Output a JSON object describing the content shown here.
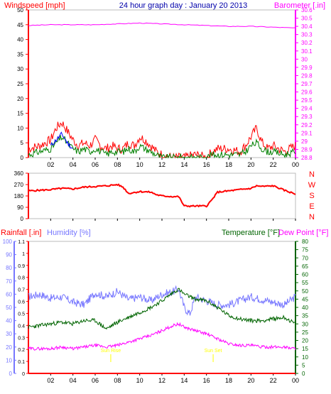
{
  "header": {
    "left_label": "Windspeed [mph]",
    "title": "24 hour graph day : January 20 2013",
    "right_label": "Barometer [.in]"
  },
  "lower_header": {
    "rainfall_label": "Rainfall [.in]",
    "humidity_label": "Humidity [%]",
    "temperature_label": "Temperature [°F]",
    "dewpoint_label": "Dew Point [°F]"
  },
  "colors": {
    "wind": "#ff0000",
    "gust": "#ff0000",
    "avg": "#008000",
    "avg2": "#0000ff",
    "baro": "#ff00ff",
    "direction": "#ff0000",
    "humidity": "#7777ff",
    "temperature": "#006400",
    "dewpoint": "#ff00ff",
    "rain": "#ff0000",
    "sun": "#ffff00",
    "title": "#0000aa"
  },
  "x_ticks": [
    "02",
    "04",
    "06",
    "08",
    "10",
    "12",
    "14",
    "16",
    "18",
    "20",
    "22",
    "00"
  ],
  "chart_data": [
    {
      "type": "line",
      "name": "wind-barometer",
      "title": "24 hour graph day : January 20 2013",
      "ylabel": "Windspeed [mph]",
      "ylabel_right": "Barometer [.in]",
      "ylim": [
        0,
        50
      ],
      "yticks": [
        0,
        5,
        10,
        15,
        20,
        25,
        30,
        35,
        40,
        45,
        50
      ],
      "ylim_right": [
        28.8,
        30.6
      ],
      "yticks_right": [
        "28.8",
        "28.9",
        "29",
        "29.1",
        "29.2",
        "29.3",
        "29.4",
        "29.5",
        "29.6",
        "29.7",
        "29.8",
        "29.9",
        "30",
        "30.1",
        "30.2",
        "30.3",
        "30.4",
        "30.5",
        "30.6"
      ],
      "xlim": [
        0,
        24
      ],
      "series": [
        {
          "key": "gust",
          "x": [
            0,
            1,
            2,
            2.5,
            3,
            3.5,
            4,
            4.5,
            5,
            5.5,
            6,
            6.5,
            7,
            7.5,
            8,
            8.5,
            9,
            9.5,
            10,
            10.5,
            11,
            11.5,
            12,
            13,
            14,
            15,
            16,
            16.5,
            17,
            18,
            19,
            19.5,
            20,
            20.5,
            21,
            21.5,
            22,
            23,
            24
          ],
          "y": [
            3,
            4,
            6,
            10,
            12,
            9,
            6,
            4,
            5,
            4,
            6,
            4,
            3,
            4,
            3,
            3,
            5,
            4,
            7,
            6,
            4,
            2,
            1,
            0,
            0,
            1,
            0,
            2,
            3,
            3,
            2,
            4,
            7,
            10,
            5,
            3,
            4,
            2,
            4
          ]
        },
        {
          "key": "avg",
          "x": [
            0,
            1,
            2,
            2.5,
            3,
            3.5,
            4,
            4.5,
            5,
            5.5,
            6,
            6.5,
            7,
            7.5,
            8,
            8.5,
            9,
            9.5,
            10,
            10.5,
            11,
            11.5,
            12,
            13,
            14,
            15,
            16,
            16.5,
            17,
            18,
            19,
            19.5,
            20,
            20.5,
            21,
            21.5,
            22,
            23,
            24
          ],
          "y": [
            1,
            2,
            3,
            5,
            7,
            5,
            3,
            2,
            3,
            2,
            3,
            2,
            1,
            2,
            2,
            2,
            3,
            2,
            4,
            3,
            2,
            1,
            0,
            0,
            0,
            0,
            0,
            1,
            1,
            1,
            1,
            2,
            4,
            5,
            3,
            2,
            2,
            1,
            2
          ]
        },
        {
          "key": "avg2",
          "x": [
            2,
            2.5,
            3,
            3.5,
            4
          ],
          "y": [
            4,
            6,
            8,
            5,
            3
          ]
        },
        {
          "key": "baro",
          "x": [
            0,
            2,
            4,
            6,
            8,
            10,
            12,
            14,
            16,
            18,
            20,
            22,
            24
          ],
          "y": [
            30.41,
            30.42,
            30.42,
            30.42,
            30.43,
            30.44,
            30.43,
            30.42,
            30.41,
            30.4,
            30.4,
            30.39,
            30.38
          ]
        }
      ]
    },
    {
      "type": "line",
      "name": "wind-direction",
      "yticks": [
        0,
        90,
        180,
        270,
        360
      ],
      "ylim": [
        0,
        360
      ],
      "compass_labels": [
        "N",
        "W",
        "S",
        "E",
        "N"
      ],
      "xlim": [
        0,
        24
      ],
      "x": [
        0,
        1,
        2,
        3,
        4,
        5,
        6,
        7,
        8,
        8.5,
        9,
        10,
        11,
        11.5,
        12,
        13,
        13.5,
        14,
        15,
        16,
        16.5,
        17,
        18,
        19,
        20,
        20.5,
        21,
        22,
        23,
        24
      ],
      "y": [
        220,
        225,
        230,
        240,
        235,
        250,
        255,
        260,
        270,
        250,
        200,
        215,
        210,
        190,
        180,
        175,
        175,
        100,
        100,
        100,
        150,
        210,
        220,
        230,
        240,
        260,
        255,
        260,
        225,
        195
      ]
    },
    {
      "type": "line",
      "name": "humidity-temperature",
      "ylabel_left": "Rainfall [.in]",
      "ylabel_left2": "Humidity [%]",
      "ylabel_right": "Temperature [°F]",
      "ylabel_right2": "Dew Point [°F]",
      "rain_ticks": [
        "0",
        "0.1",
        "0.2",
        "0.3",
        "0.4",
        "0.5",
        "0.6",
        "0.7",
        "0.8",
        "0.9",
        "1",
        "1.1"
      ],
      "rain_lim": [
        0,
        1.1
      ],
      "humidity_ticks": [
        0,
        10,
        20,
        30,
        40,
        50,
        60,
        70,
        80,
        90,
        100
      ],
      "humidity_lim": [
        0,
        100
      ],
      "temp_ticks": [
        0,
        5,
        10,
        15,
        20,
        25,
        30,
        35,
        40,
        45,
        50,
        55,
        60,
        65,
        70,
        75,
        80
      ],
      "temp_lim": [
        0,
        80
      ],
      "xlim": [
        0,
        24
      ],
      "sun_markers": [
        {
          "x": 7.4,
          "label": "Sun Rise"
        },
        {
          "x": 16.6,
          "label": "Sun Set"
        }
      ],
      "series": [
        {
          "key": "humidity",
          "x": [
            0,
            1,
            2,
            3,
            4,
            5,
            6,
            7,
            8,
            9,
            10,
            11,
            12,
            13,
            13.5,
            14,
            14.5,
            15,
            16,
            17,
            18,
            19,
            20,
            21,
            22,
            23,
            24
          ],
          "y": [
            58,
            60,
            57,
            58,
            54,
            52,
            61,
            58,
            62,
            56,
            58,
            55,
            60,
            62,
            64,
            50,
            45,
            58,
            55,
            52,
            52,
            55,
            58,
            56,
            54,
            52,
            58
          ]
        },
        {
          "key": "temperature",
          "x": [
            0,
            1,
            2,
            3,
            4,
            5,
            6,
            7,
            8,
            9,
            10,
            11,
            12,
            13,
            13.5,
            14,
            15,
            16,
            17,
            18,
            19,
            20,
            21,
            22,
            23,
            24
          ],
          "y": [
            28,
            29,
            30,
            31,
            30,
            32,
            32,
            27,
            31,
            34,
            37,
            40,
            44,
            49,
            51,
            48,
            45,
            44,
            40,
            35,
            33,
            32,
            32,
            33,
            34,
            30
          ]
        },
        {
          "key": "dewpoint",
          "x": [
            0,
            1,
            2,
            3,
            4,
            5,
            6,
            7,
            8,
            9,
            10,
            11,
            12,
            13,
            13.5,
            14,
            15,
            16,
            17,
            18,
            19,
            20,
            21,
            22,
            23,
            24
          ],
          "y": [
            15,
            15,
            15,
            16,
            15,
            16,
            17,
            16,
            17,
            19,
            21,
            23,
            26,
            29,
            30,
            28,
            26,
            24,
            21,
            18,
            17,
            17,
            16,
            16,
            16,
            15
          ]
        },
        {
          "key": "rain",
          "x": [
            0,
            24
          ],
          "y": [
            0,
            0
          ]
        }
      ]
    }
  ]
}
